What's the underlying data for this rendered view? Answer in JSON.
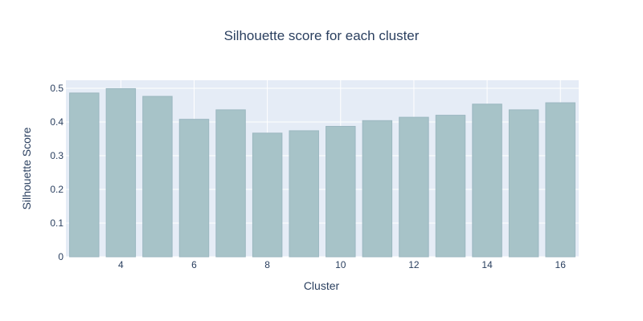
{
  "chart_data": {
    "type": "bar",
    "title": "Silhouette score for each cluster",
    "xlabel": "Cluster",
    "ylabel": "Silhouette Score",
    "x": [
      3,
      4,
      5,
      6,
      7,
      8,
      9,
      10,
      11,
      12,
      13,
      14,
      15,
      16
    ],
    "values": [
      0.486,
      0.499,
      0.476,
      0.408,
      0.436,
      0.367,
      0.374,
      0.387,
      0.404,
      0.414,
      0.42,
      0.453,
      0.436,
      0.457
    ],
    "xlim": [
      2.5,
      16.5
    ],
    "ylim": [
      0,
      0.5
    ],
    "x_ticks": [
      4,
      6,
      8,
      10,
      12,
      14,
      16
    ],
    "x_tick_labels": [
      "4",
      "6",
      "8",
      "10",
      "12",
      "14",
      "16"
    ],
    "y_ticks": [
      0,
      0.1,
      0.2,
      0.3,
      0.4,
      0.5
    ],
    "y_tick_labels": [
      "0",
      "0.1",
      "0.2",
      "0.3",
      "0.4",
      "0.5"
    ],
    "grid": true,
    "colors": {
      "plot_background": "#e5ecf6",
      "grid": "#ffffff",
      "bar_fill": "#a7c3c8",
      "bar_stroke": "#9bb7c0",
      "text": "#2a3f5f"
    }
  }
}
